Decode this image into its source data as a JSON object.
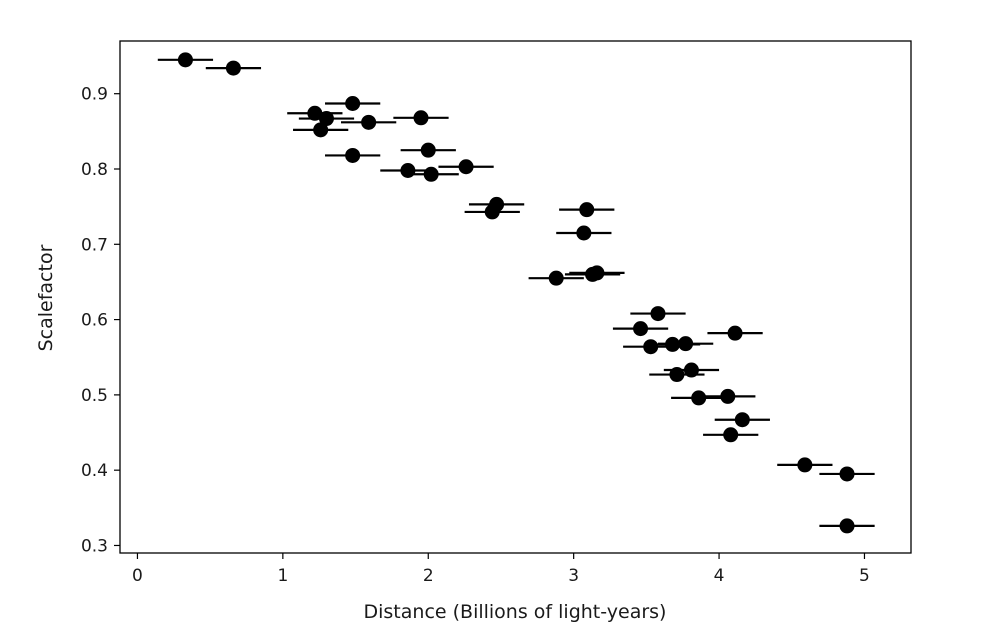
{
  "chart_data": {
    "type": "scatter",
    "title": "",
    "xlabel": "Distance (Billions of light-years)",
    "ylabel": "Scalefactor",
    "xlim": [
      -0.12,
      5.32
    ],
    "ylim": [
      0.29,
      0.97
    ],
    "xticks": [
      0,
      1,
      2,
      3,
      4,
      5
    ],
    "yticks": [
      0.3,
      0.4,
      0.5,
      0.6,
      0.7,
      0.8,
      0.9
    ],
    "xtick_labels": [
      "0",
      "1",
      "2",
      "3",
      "4",
      "5"
    ],
    "ytick_labels": [
      "0.3",
      "0.4",
      "0.5",
      "0.6",
      "0.7",
      "0.8",
      "0.9"
    ],
    "grid": false,
    "legend": "none",
    "marker_color": "#000000",
    "points": [
      {
        "x": 0.33,
        "y": 0.945,
        "xerr": 0.19
      },
      {
        "x": 0.66,
        "y": 0.934,
        "xerr": 0.19
      },
      {
        "x": 1.22,
        "y": 0.874,
        "xerr": 0.19
      },
      {
        "x": 1.3,
        "y": 0.867,
        "xerr": 0.19
      },
      {
        "x": 1.26,
        "y": 0.852,
        "xerr": 0.19
      },
      {
        "x": 1.48,
        "y": 0.887,
        "xerr": 0.19
      },
      {
        "x": 1.59,
        "y": 0.862,
        "xerr": 0.19
      },
      {
        "x": 1.48,
        "y": 0.818,
        "xerr": 0.19
      },
      {
        "x": 1.95,
        "y": 0.868,
        "xerr": 0.19
      },
      {
        "x": 2.0,
        "y": 0.825,
        "xerr": 0.19
      },
      {
        "x": 1.86,
        "y": 0.798,
        "xerr": 0.19
      },
      {
        "x": 2.02,
        "y": 0.793,
        "xerr": 0.19
      },
      {
        "x": 2.26,
        "y": 0.803,
        "xerr": 0.19
      },
      {
        "x": 2.47,
        "y": 0.753,
        "xerr": 0.19
      },
      {
        "x": 2.44,
        "y": 0.743,
        "xerr": 0.19
      },
      {
        "x": 3.09,
        "y": 0.746,
        "xerr": 0.19
      },
      {
        "x": 3.07,
        "y": 0.715,
        "xerr": 0.19
      },
      {
        "x": 2.88,
        "y": 0.655,
        "xerr": 0.19
      },
      {
        "x": 3.13,
        "y": 0.66,
        "xerr": 0.19
      },
      {
        "x": 3.16,
        "y": 0.662,
        "xerr": 0.19
      },
      {
        "x": 3.58,
        "y": 0.608,
        "xerr": 0.19
      },
      {
        "x": 3.46,
        "y": 0.588,
        "xerr": 0.19
      },
      {
        "x": 4.11,
        "y": 0.582,
        "xerr": 0.19
      },
      {
        "x": 3.53,
        "y": 0.564,
        "xerr": 0.19
      },
      {
        "x": 3.68,
        "y": 0.567,
        "xerr": 0.19
      },
      {
        "x": 3.77,
        "y": 0.568,
        "xerr": 0.19
      },
      {
        "x": 3.81,
        "y": 0.533,
        "xerr": 0.19
      },
      {
        "x": 3.71,
        "y": 0.527,
        "xerr": 0.19
      },
      {
        "x": 3.86,
        "y": 0.496,
        "xerr": 0.19
      },
      {
        "x": 4.06,
        "y": 0.498,
        "xerr": 0.19
      },
      {
        "x": 4.16,
        "y": 0.467,
        "xerr": 0.19
      },
      {
        "x": 4.08,
        "y": 0.447,
        "xerr": 0.19
      },
      {
        "x": 4.59,
        "y": 0.407,
        "xerr": 0.19
      },
      {
        "x": 4.88,
        "y": 0.395,
        "xerr": 0.19
      },
      {
        "x": 4.88,
        "y": 0.326,
        "xerr": 0.19
      }
    ]
  }
}
